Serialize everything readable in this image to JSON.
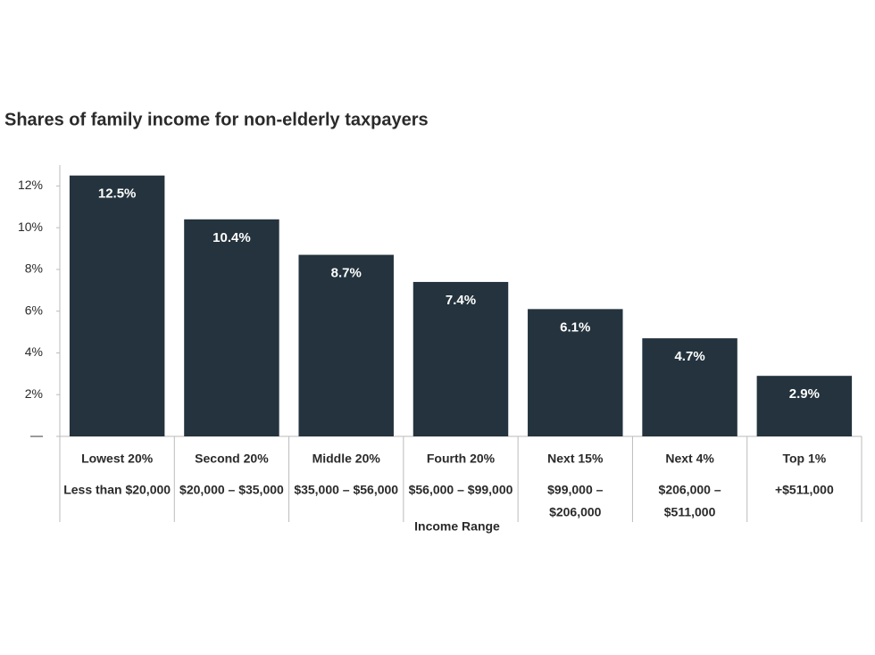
{
  "chart_data": {
    "type": "bar",
    "title": "Shares of family income for non-elderly taxpayers",
    "x_label": "Income Range",
    "categories": [
      "Lowest 20%",
      "Second 20%",
      "Middle 20%",
      "Fourth 20%",
      "Next 15%",
      "Next 4%",
      "Top 1%"
    ],
    "category_ranges": [
      [
        "Less than $20,000"
      ],
      [
        "$20,000 – $35,000"
      ],
      [
        "$35,000 – $56,000"
      ],
      [
        "$56,000 – $99,000"
      ],
      [
        "$99,000 –",
        "$206,000"
      ],
      [
        "$206,000 –",
        "$511,000"
      ],
      [
        "+$511,000"
      ]
    ],
    "values": [
      12.5,
      10.4,
      8.7,
      7.4,
      6.1,
      4.7,
      2.9
    ],
    "value_labels": [
      "12.5%",
      "10.4%",
      "8.7%",
      "7.4%",
      "6.1%",
      "4.7%",
      "2.9%"
    ],
    "color": "#24333d",
    "ylim": [
      0,
      13
    ],
    "yticks": [
      {
        "value": 0,
        "label": "—"
      },
      {
        "value": 2,
        "label": "2%"
      },
      {
        "value": 4,
        "label": "4%"
      },
      {
        "value": 6,
        "label": "6%"
      },
      {
        "value": 8,
        "label": "8%"
      },
      {
        "value": 10,
        "label": "10%"
      },
      {
        "value": 12,
        "label": "12%"
      }
    ]
  }
}
